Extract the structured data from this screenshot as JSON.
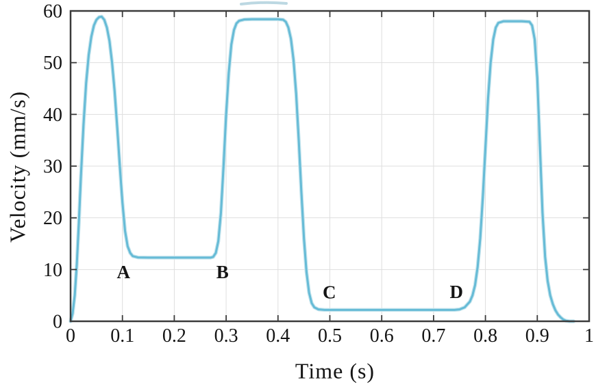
{
  "figure": {
    "background": "#ffffff"
  },
  "chart_data": {
    "type": "line",
    "title": "",
    "xlabel": "Time (s)",
    "ylabel": "Velocity (mm/s)",
    "xlim": [
      0,
      1
    ],
    "ylim": [
      0,
      60
    ],
    "xticks": [
      0,
      0.1,
      0.2,
      0.3,
      0.4,
      0.5,
      0.6,
      0.7,
      0.8,
      0.9,
      1
    ],
    "xtick_labels": [
      "0",
      "0.1",
      "0.2",
      "0.3",
      "0.4",
      "0.5",
      "0.6",
      "0.7",
      "0.8",
      "0.9",
      "1"
    ],
    "yticks": [
      0,
      10,
      20,
      30,
      40,
      50,
      60
    ],
    "ytick_labels": [
      "0",
      "10",
      "20",
      "30",
      "40",
      "50",
      "60"
    ],
    "grid": true,
    "legend": "none",
    "colors": {
      "line": "#66bbd6",
      "line_halo": "#c6e5ee",
      "axis": "#3a3a3a",
      "grid": "#dedede",
      "text": "#141414",
      "artifact": "#bcd8e2"
    },
    "annotations": [
      {
        "label": "A",
        "x": 0.102,
        "y": 9.5
      },
      {
        "label": "B",
        "x": 0.293,
        "y": 9.5
      },
      {
        "label": "C",
        "x": 0.499,
        "y": 5.6
      },
      {
        "label": "D",
        "x": 0.744,
        "y": 5.7
      }
    ],
    "series": [
      {
        "name": "velocity-profile",
        "points": [
          [
            0,
            0
          ],
          [
            0.004,
            1.5
          ],
          [
            0.008,
            5
          ],
          [
            0.012,
            11
          ],
          [
            0.016,
            19
          ],
          [
            0.02,
            28
          ],
          [
            0.025,
            38
          ],
          [
            0.03,
            46
          ],
          [
            0.035,
            51.5
          ],
          [
            0.04,
            55
          ],
          [
            0.045,
            57.2
          ],
          [
            0.05,
            58.3
          ],
          [
            0.055,
            58.8
          ],
          [
            0.06,
            58.9
          ],
          [
            0.065,
            58.3
          ],
          [
            0.07,
            56.8
          ],
          [
            0.075,
            54.2
          ],
          [
            0.08,
            50
          ],
          [
            0.085,
            44.5
          ],
          [
            0.09,
            37.5
          ],
          [
            0.095,
            30
          ],
          [
            0.1,
            23
          ],
          [
            0.105,
            17.5
          ],
          [
            0.11,
            14.5
          ],
          [
            0.115,
            13.2
          ],
          [
            0.12,
            12.6
          ],
          [
            0.13,
            12.35
          ],
          [
            0.15,
            12.3
          ],
          [
            0.2,
            12.3
          ],
          [
            0.25,
            12.3
          ],
          [
            0.27,
            12.3
          ],
          [
            0.275,
            12.45
          ],
          [
            0.28,
            13.2
          ],
          [
            0.285,
            15.5
          ],
          [
            0.29,
            21
          ],
          [
            0.295,
            30
          ],
          [
            0.3,
            40
          ],
          [
            0.305,
            48
          ],
          [
            0.31,
            53.5
          ],
          [
            0.315,
            56.3
          ],
          [
            0.32,
            57.6
          ],
          [
            0.325,
            58.1
          ],
          [
            0.335,
            58.35
          ],
          [
            0.35,
            58.4
          ],
          [
            0.38,
            58.4
          ],
          [
            0.4,
            58.4
          ],
          [
            0.41,
            58.3
          ],
          [
            0.415,
            57.9
          ],
          [
            0.42,
            56.8
          ],
          [
            0.425,
            54.6
          ],
          [
            0.43,
            50.5
          ],
          [
            0.435,
            44
          ],
          [
            0.44,
            35
          ],
          [
            0.445,
            25
          ],
          [
            0.45,
            16
          ],
          [
            0.455,
            9.5
          ],
          [
            0.46,
            5.5
          ],
          [
            0.465,
            3.5
          ],
          [
            0.47,
            2.7
          ],
          [
            0.478,
            2.3
          ],
          [
            0.49,
            2.2
          ],
          [
            0.55,
            2.2
          ],
          [
            0.62,
            2.2
          ],
          [
            0.7,
            2.2
          ],
          [
            0.74,
            2.2
          ],
          [
            0.75,
            2.3
          ],
          [
            0.76,
            2.7
          ],
          [
            0.77,
            3.8
          ],
          [
            0.775,
            5
          ],
          [
            0.78,
            7
          ],
          [
            0.785,
            10.5
          ],
          [
            0.79,
            16
          ],
          [
            0.795,
            24
          ],
          [
            0.8,
            33.5
          ],
          [
            0.805,
            43
          ],
          [
            0.81,
            50
          ],
          [
            0.815,
            54.5
          ],
          [
            0.82,
            56.8
          ],
          [
            0.825,
            57.7
          ],
          [
            0.835,
            58
          ],
          [
            0.85,
            58
          ],
          [
            0.87,
            58
          ],
          [
            0.885,
            57.9
          ],
          [
            0.89,
            57.2
          ],
          [
            0.895,
            54.5
          ],
          [
            0.9,
            47
          ],
          [
            0.905,
            34
          ],
          [
            0.91,
            21
          ],
          [
            0.915,
            12.5
          ],
          [
            0.92,
            7.8
          ],
          [
            0.925,
            5
          ],
          [
            0.93,
            3.3
          ],
          [
            0.935,
            2.1
          ],
          [
            0.94,
            1.3
          ],
          [
            0.945,
            0.75
          ],
          [
            0.95,
            0.35
          ],
          [
            0.955,
            0.12
          ],
          [
            0.962,
            0
          ],
          [
            0.97,
            0
          ]
        ]
      }
    ]
  }
}
